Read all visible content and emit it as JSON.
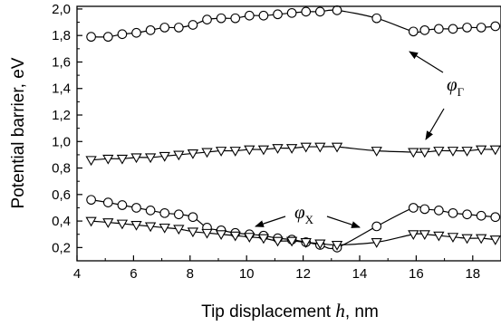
{
  "chart_data": {
    "type": "line",
    "title": "",
    "xlabel_prefix": "Tip displacement ",
    "xlabel_var": "h",
    "xlabel_suffix": ", nm",
    "ylabel": "Potential barrier, eV",
    "xlim": [
      4,
      19
    ],
    "ylim": [
      0.1,
      2.02
    ],
    "x_ticks": [
      4,
      6,
      8,
      10,
      12,
      14,
      16,
      18
    ],
    "x_tick_labels": [
      "4",
      "6",
      "8",
      "10",
      "12",
      "14",
      "16",
      "18"
    ],
    "y_ticks": [
      0.2,
      0.4,
      0.6,
      0.8,
      1.0,
      1.2,
      1.4,
      1.6,
      1.8,
      2.0
    ],
    "y_tick_labels": [
      "0,2",
      "0,4",
      "0,6",
      "0,8",
      "1,0",
      "1,2",
      "1,4",
      "1,6",
      "1,8",
      "2,0"
    ],
    "grid": false,
    "series": [
      {
        "marker": "circle",
        "x": [
          4.5,
          5.1,
          5.6,
          6.1,
          6.6,
          7.1,
          7.6,
          8.1,
          8.6,
          9.1,
          9.6,
          10.1,
          10.6,
          11.1,
          11.6,
          12.1,
          12.6,
          13.2,
          14.6,
          15.9,
          16.3,
          16.8,
          17.3,
          17.8,
          18.3,
          18.8
        ],
        "y": [
          1.79,
          1.79,
          1.81,
          1.82,
          1.84,
          1.86,
          1.86,
          1.88,
          1.92,
          1.93,
          1.93,
          1.95,
          1.95,
          1.96,
          1.97,
          1.98,
          1.98,
          1.99,
          1.93,
          1.83,
          1.84,
          1.85,
          1.85,
          1.86,
          1.86,
          1.87
        ]
      },
      {
        "marker": "triangle-down",
        "x": [
          4.5,
          5.1,
          5.6,
          6.1,
          6.6,
          7.1,
          7.6,
          8.1,
          8.6,
          9.1,
          9.6,
          10.1,
          10.6,
          11.1,
          11.6,
          12.1,
          12.6,
          13.2,
          14.6,
          15.9,
          16.3,
          16.8,
          17.3,
          17.8,
          18.3,
          18.8
        ],
        "y": [
          0.86,
          0.87,
          0.87,
          0.88,
          0.88,
          0.89,
          0.9,
          0.91,
          0.92,
          0.93,
          0.93,
          0.94,
          0.94,
          0.95,
          0.95,
          0.96,
          0.96,
          0.96,
          0.93,
          0.92,
          0.92,
          0.93,
          0.93,
          0.93,
          0.94,
          0.94
        ]
      },
      {
        "marker": "circle",
        "x": [
          4.5,
          5.1,
          5.6,
          6.1,
          6.6,
          7.1,
          7.6,
          8.1,
          8.6,
          9.1,
          9.6,
          10.1,
          10.6,
          11.1,
          11.6,
          12.1,
          12.6,
          13.2,
          14.6,
          15.9,
          16.3,
          16.8,
          17.3,
          17.8,
          18.3,
          18.8
        ],
        "y": [
          0.56,
          0.54,
          0.52,
          0.5,
          0.48,
          0.46,
          0.45,
          0.43,
          0.35,
          0.33,
          0.31,
          0.3,
          0.29,
          0.27,
          0.26,
          0.24,
          0.22,
          0.2,
          0.36,
          0.5,
          0.49,
          0.48,
          0.46,
          0.45,
          0.44,
          0.43
        ]
      },
      {
        "marker": "triangle-down",
        "x": [
          4.5,
          5.1,
          5.6,
          6.1,
          6.6,
          7.1,
          7.6,
          8.1,
          8.6,
          9.1,
          9.6,
          10.1,
          10.6,
          11.1,
          11.6,
          12.1,
          12.6,
          13.2,
          14.6,
          15.9,
          16.3,
          16.8,
          17.3,
          17.8,
          18.3,
          18.8
        ],
        "y": [
          0.4,
          0.39,
          0.38,
          0.37,
          0.36,
          0.35,
          0.34,
          0.32,
          0.31,
          0.3,
          0.29,
          0.28,
          0.27,
          0.25,
          0.25,
          0.24,
          0.23,
          0.22,
          0.24,
          0.3,
          0.3,
          0.29,
          0.28,
          0.27,
          0.27,
          0.26
        ]
      }
    ],
    "annotations": [
      {
        "text": "φ",
        "subscript": "Γ"
      },
      {
        "text": "φ",
        "subscript": "X"
      }
    ]
  }
}
